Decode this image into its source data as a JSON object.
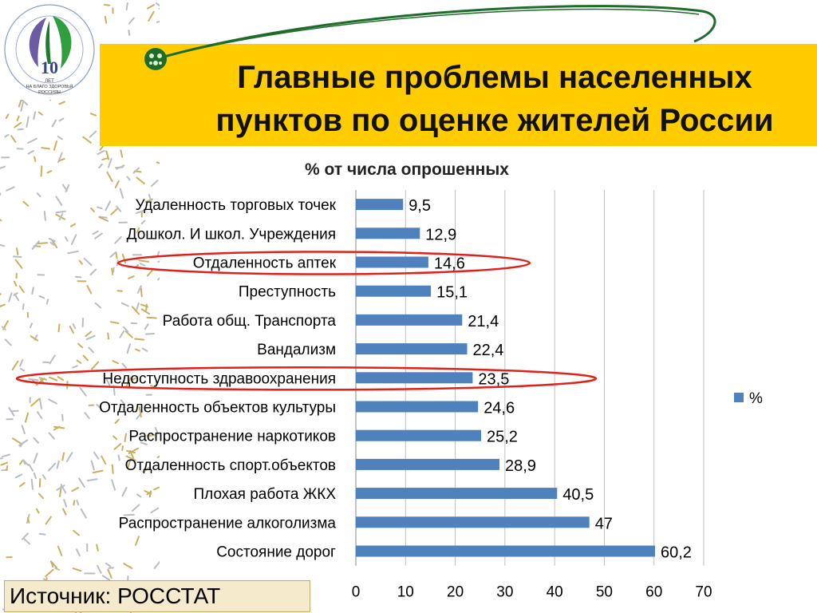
{
  "header": {
    "title_line1": "Главные проблемы населенных",
    "title_line2": "пунктов по оценке жителей России",
    "band_color": "#ffcc00"
  },
  "logo": {
    "number": "10",
    "caption_1": "ЛЕТ",
    "caption_2": "НА БЛАГО ЗДОРОВЬЯ",
    "caption_3": "РОССИЯН",
    "ring_text": "АССОЦИАЦИЯ РОССИЙСКИХ ФАРМАЦЕВТИЧЕСКИХ ПРОИЗВОДИТЕЛЕЙ"
  },
  "chart_data": {
    "type": "bar",
    "orientation": "horizontal",
    "title": "% от числа опрошенных",
    "categories": [
      "Удаленность торговых точек",
      "Дошкол. И школ. Учреждения",
      "Отдаленность аптек",
      "Преступность",
      "Работа общ. Транспорта",
      "Вандализм",
      "Недоступность здравоохранения",
      "Отдаленность объектов культуры",
      "Распространение наркотиков",
      "Отдаленность спорт.объектов",
      "Плохая работа ЖКХ",
      "Распространение алкоголизма",
      "Состояние дорог"
    ],
    "value_labels": [
      "9,5",
      "12,9",
      "14,6",
      "15,1",
      "21,4",
      "22,4",
      "23,5",
      "24,6",
      "25,2",
      "28,9",
      "40,5",
      "47",
      "60,2"
    ],
    "series": [
      {
        "name": "%",
        "values": [
          9.5,
          12.9,
          14.6,
          15.1,
          21.4,
          22.4,
          23.5,
          24.6,
          25.2,
          28.9,
          40.5,
          47,
          60.2
        ]
      }
    ],
    "xlim": [
      0,
      70
    ],
    "x_ticks": [
      "0",
      "10",
      "20",
      "30",
      "40",
      "50",
      "60",
      "70"
    ],
    "grid": true,
    "legend": "right",
    "bar_color": "#4f81bd",
    "highlighted_categories": [
      "Отдаленность аптек",
      "Недоступность здравоохранения"
    ],
    "highlight_color": "#e0201b"
  },
  "footer": {
    "source_label": "Источник: РОССТАТ"
  }
}
